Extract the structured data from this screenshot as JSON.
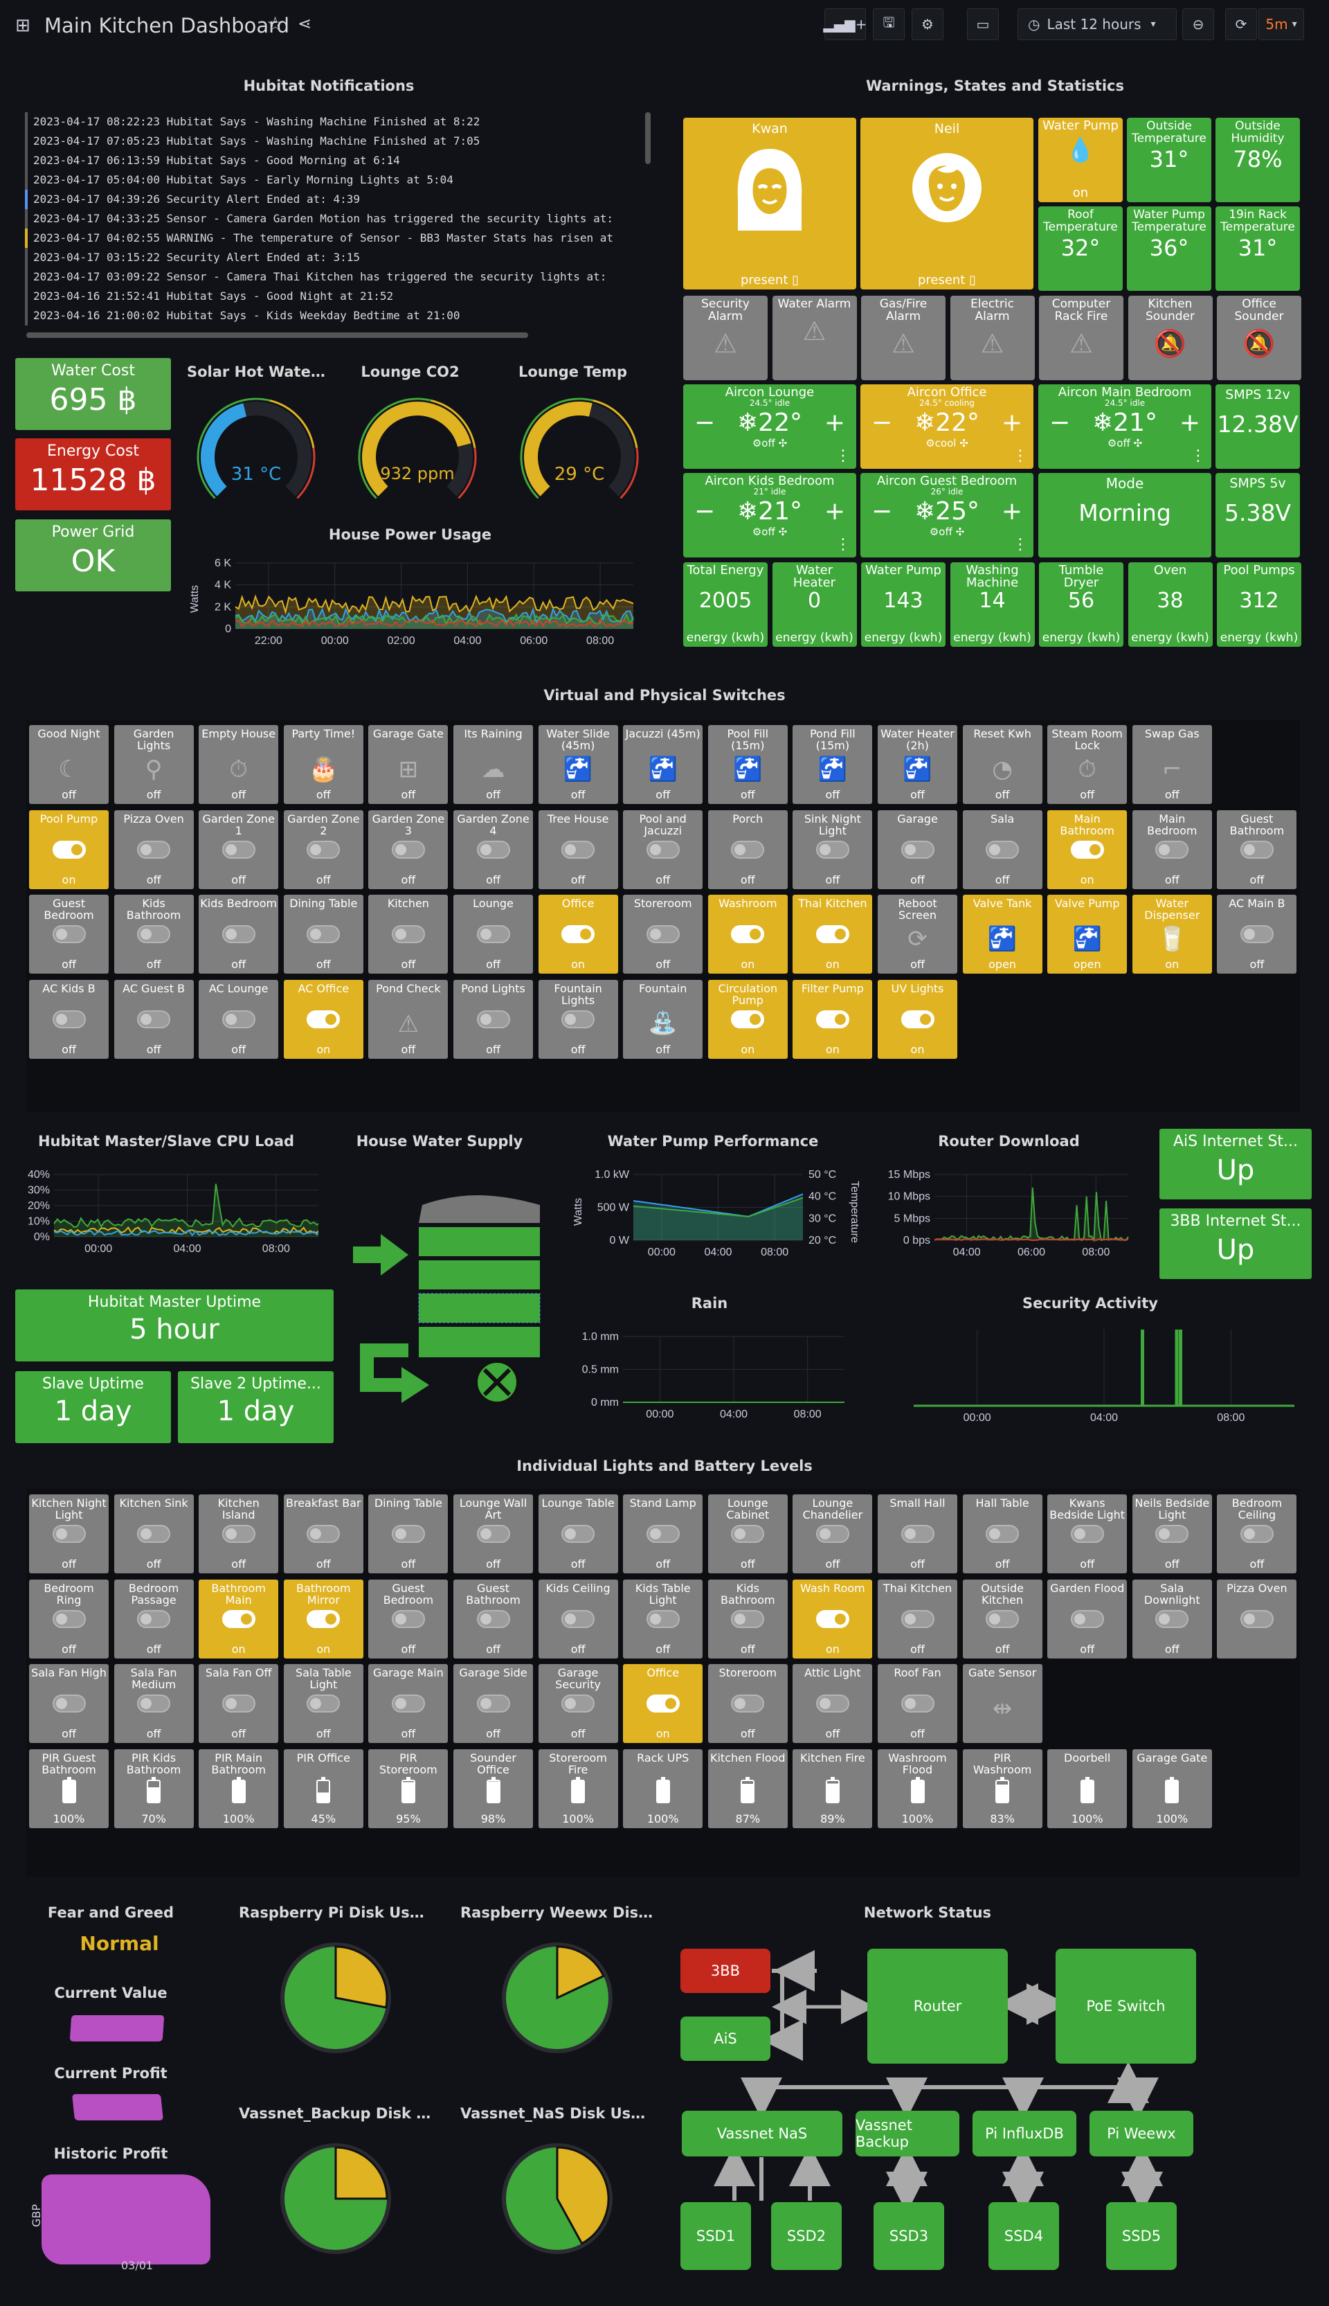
{
  "header": {
    "title": "Main Kitchen Dashboard",
    "time_range": "Last 12 hours",
    "refresh": "5m"
  },
  "notifications": {
    "title": "Hubitat Notifications",
    "lines": [
      "2023-04-17 08:22:23 Hubitat Says - Washing Machine Finished at 8:22",
      "2023-04-17 07:05:23 Hubitat Says - Washing Machine Finished at 7:05",
      "2023-04-17 06:13:59 Hubitat Says - Good Morning at 6:14",
      "2023-04-17 05:04:00 Hubitat Says - Early Morning Lights at 5:04",
      "2023-04-17 04:39:26 Security Alert Ended at: 4:39",
      "2023-04-17 04:33:25 Sensor - Camera Garden Motion has triggered the security lights at:",
      "2023-04-17 04:02:55 WARNING - The temperature of Sensor - BB3 Master Stats has risen at",
      "2023-04-17 03:15:22 Security Alert Ended at: 3:15",
      "2023-04-17 03:09:22 Sensor - Camera Thai Kitchen has triggered the security lights at:",
      "2023-04-16 21:52:41 Hubitat Says - Good Night at 21:52",
      "2023-04-16 21:00:02 Hubitat Says - Kids Weekday Bedtime at 21:00"
    ]
  },
  "costs": {
    "water_title": "Water Cost",
    "water_value": "695 ฿",
    "energy_title": "Energy Cost",
    "energy_value": "11528 ฿",
    "grid_title": "Power Grid",
    "grid_value": "OK"
  },
  "gauges": {
    "solar_title": "Solar Hot Wate...",
    "solar_value": "31 °C",
    "solar_fraction": 0.45,
    "co2_title": "Lounge CO2",
    "co2_value": "932 ppm",
    "co2_fraction": 0.78,
    "temp_title": "Lounge Temp",
    "temp_value": "29 °C",
    "temp_fraction": 0.55
  },
  "power": {
    "title": "House Power Usage",
    "ylabel": "Watts",
    "yticks": [
      "6 K",
      "4 K",
      "2 K",
      "0"
    ],
    "xticks": [
      "22:00",
      "00:00",
      "02:00",
      "04:00",
      "06:00",
      "08:00"
    ]
  },
  "warnings": {
    "title": "Warnings, States and Statistics",
    "kwan": {
      "name": "Kwan",
      "state": "present"
    },
    "neil": {
      "name": "Neil",
      "state": "present"
    },
    "tiles": [
      {
        "label": "Water Pump",
        "value": "on"
      },
      {
        "label": "Outside Temperature",
        "value": "31°"
      },
      {
        "label": "Outside Humidity",
        "value": "78%"
      },
      {
        "label": "Roof Temperature",
        "value": "32°"
      },
      {
        "label": "Water Pump Temperature",
        "value": "36°"
      },
      {
        "label": "19in Rack Temperature",
        "value": "31°"
      }
    ],
    "alarms": [
      "Security Alarm",
      "Water Alarm",
      "Gas/Fire Alarm",
      "Electric Alarm",
      "Computer Rack Fire",
      "Kitchen Sounder",
      "Office Sounder"
    ],
    "aircons": [
      {
        "name": "Aircon Lounge",
        "sub": "24.5° idle",
        "temp": "22°",
        "mode": "off"
      },
      {
        "name": "Aircon Office",
        "sub": "24.5° cooling",
        "temp": "22°",
        "mode": "cool"
      },
      {
        "name": "Aircon Main Bedroom",
        "sub": "24.5° idle",
        "temp": "21°",
        "mode": "off"
      },
      {
        "name": "Aircon Kids Bedroom",
        "sub": "21° idle",
        "temp": "21°",
        "mode": "off"
      },
      {
        "name": "Aircon Guest Bedroom",
        "sub": "26° idle",
        "temp": "25°",
        "mode": "off"
      }
    ],
    "smps12": {
      "label": "SMPS 12v",
      "value": "12.38V"
    },
    "smps5": {
      "label": "SMPS 5v",
      "value": "5.38V"
    },
    "mode": {
      "label": "Mode",
      "value": "Morning"
    },
    "energy": [
      {
        "label": "Total Energy",
        "value": "2005",
        "unit": "energy (kwh)"
      },
      {
        "label": "Water Heater",
        "value": "0",
        "unit": "energy (kwh)"
      },
      {
        "label": "Water Pump",
        "value": "143",
        "unit": "energy (kwh)"
      },
      {
        "label": "Washing Machine",
        "value": "14",
        "unit": "energy (kwh)"
      },
      {
        "label": "Tumble Dryer",
        "value": "56",
        "unit": "energy (kwh)"
      },
      {
        "label": "Oven",
        "value": "38",
        "unit": "energy (kwh)"
      },
      {
        "label": "Pool Pumps",
        "value": "312",
        "unit": "energy (kwh)"
      }
    ]
  },
  "switches": {
    "title": "Virtual and Physical Switches",
    "rows": [
      [
        {
          "label": "Good Night",
          "state": "off",
          "icon": "moon"
        },
        {
          "label": "Garden Lights",
          "state": "off",
          "icon": "lamp"
        },
        {
          "label": "Empty House",
          "state": "off",
          "icon": "timer"
        },
        {
          "label": "Party Time!",
          "state": "off",
          "icon": "cake"
        },
        {
          "label": "Garage Gate",
          "state": "off",
          "icon": "gate"
        },
        {
          "label": "Its Raining",
          "state": "off",
          "icon": "cloud"
        },
        {
          "label": "Water Slide (45m)",
          "state": "off",
          "icon": "tap"
        },
        {
          "label": "Jacuzzi (45m)",
          "state": "off",
          "icon": "tap"
        },
        {
          "label": "Pool Fill (15m)",
          "state": "off",
          "icon": "tap"
        },
        {
          "label": "Pond Fill (15m)",
          "state": "off",
          "icon": "tap"
        },
        {
          "label": "Water Heater (2h)",
          "state": "off",
          "icon": "tap"
        },
        {
          "label": "Reset Kwh",
          "state": "off",
          "icon": "gauge"
        },
        {
          "label": "Steam Room Lock",
          "state": "off",
          "icon": "timer"
        },
        {
          "label": "Swap Gas",
          "state": "off",
          "icon": "pipe"
        }
      ],
      [
        {
          "label": "Pool Pump",
          "state": "on",
          "icon": "toggle"
        },
        {
          "label": "Pizza Oven",
          "state": "off",
          "icon": "toggle"
        },
        {
          "label": "Garden Zone 1",
          "state": "off",
          "icon": "toggle"
        },
        {
          "label": "Garden Zone 2",
          "state": "off",
          "icon": "toggle"
        },
        {
          "label": "Garden Zone 3",
          "state": "off",
          "icon": "toggle"
        },
        {
          "label": "Garden Zone 4",
          "state": "off",
          "icon": "toggle"
        },
        {
          "label": "Tree House",
          "state": "off",
          "icon": "toggle"
        },
        {
          "label": "Pool and Jacuzzi",
          "state": "off",
          "icon": "toggle"
        },
        {
          "label": "Porch",
          "state": "off",
          "icon": "toggle"
        },
        {
          "label": "Sink Night Light",
          "state": "off",
          "icon": "toggle"
        },
        {
          "label": "Garage",
          "state": "off",
          "icon": "toggle"
        },
        {
          "label": "Sala",
          "state": "off",
          "icon": "toggle"
        },
        {
          "label": "Main Bathroom",
          "state": "on",
          "icon": "toggle"
        },
        {
          "label": "Main Bedroom",
          "state": "off",
          "icon": "toggle"
        },
        {
          "label": "Guest Bathroom",
          "state": "off",
          "icon": "toggle"
        }
      ],
      [
        {
          "label": "Guest Bedroom",
          "state": "off",
          "icon": "toggle"
        },
        {
          "label": "Kids Bathroom",
          "state": "off",
          "icon": "toggle"
        },
        {
          "label": "Kids Bedroom",
          "state": "off",
          "icon": "toggle"
        },
        {
          "label": "Dining Table",
          "state": "off",
          "icon": "toggle"
        },
        {
          "label": "Kitchen",
          "state": "off",
          "icon": "toggle"
        },
        {
          "label": "Lounge",
          "state": "off",
          "icon": "toggle"
        },
        {
          "label": "Office",
          "state": "on",
          "icon": "toggle"
        },
        {
          "label": "Storeroom",
          "state": "off",
          "icon": "toggle"
        },
        {
          "label": "Washroom",
          "state": "on",
          "icon": "toggle"
        },
        {
          "label": "Thai Kitchen",
          "state": "on",
          "icon": "toggle"
        },
        {
          "label": "Reboot Screen",
          "state": "off",
          "icon": "reboot"
        },
        {
          "label": "Valve Tank",
          "state": "open",
          "icon": "tap"
        },
        {
          "label": "Valve Pump",
          "state": "open",
          "icon": "tap"
        },
        {
          "label": "Water Dispenser",
          "state": "on",
          "icon": "cup"
        },
        {
          "label": "AC Main B",
          "state": "off",
          "icon": "toggle"
        }
      ],
      [
        {
          "label": "AC Kids B",
          "state": "off",
          "icon": "toggle"
        },
        {
          "label": "AC Guest B",
          "state": "off",
          "icon": "toggle"
        },
        {
          "label": "AC Lounge",
          "state": "off",
          "icon": "toggle"
        },
        {
          "label": "AC Office",
          "state": "on",
          "icon": "toggle"
        },
        {
          "label": "Pond Check",
          "state": "off",
          "icon": "warn"
        },
        {
          "label": "Pond Lights",
          "state": "off",
          "icon": "toggle"
        },
        {
          "label": "Fountain Lights",
          "state": "off",
          "icon": "toggle"
        },
        {
          "label": "Fountain",
          "state": "off",
          "icon": "fountain"
        },
        {
          "label": "Circulation Pump",
          "state": "on",
          "icon": "toggle"
        },
        {
          "label": "Filter Pump",
          "state": "on",
          "icon": "toggle"
        },
        {
          "label": "UV Lights",
          "state": "on",
          "icon": "toggle"
        }
      ]
    ]
  },
  "cpu": {
    "title": "Hubitat Master/Slave CPU Load",
    "yticks": [
      "40%",
      "30%",
      "20%",
      "10%",
      "0%"
    ],
    "xticks": [
      "00:00",
      "04:00",
      "08:00"
    ]
  },
  "water_supply": {
    "title": "House Water Supply"
  },
  "pump": {
    "title": "Water Pump Performance",
    "ylabel": "Watts",
    "y2label": "Temperature",
    "yticks": [
      "1.0 kW",
      "500 W",
      "0 W"
    ],
    "y2ticks": [
      "50 °C",
      "40 °C",
      "30 °C",
      "20 °C"
    ],
    "xticks": [
      "00:00",
      "04:00",
      "08:00"
    ]
  },
  "router": {
    "title": "Router Download",
    "yticks": [
      "15 Mbps",
      "10 Mbps",
      "5 Mbps",
      "0 bps"
    ],
    "xticks": [
      "04:00",
      "06:00",
      "08:00"
    ]
  },
  "internet": {
    "ais_title": "AiS Internet St...",
    "ais_value": "Up",
    "bb3_title": "3BB Internet St...",
    "bb3_value": "Up"
  },
  "uptime": {
    "master_title": "Hubitat Master Uptime",
    "master_value": "5 hour",
    "slave_title": "Slave Uptime",
    "slave_value": "1 day",
    "slave2_title": "Slave 2 Uptime...",
    "slave2_value": "1 day"
  },
  "rain": {
    "title": "Rain",
    "yticks": [
      "1.0 mm",
      "0.5 mm",
      "0 mm"
    ],
    "xticks": [
      "00:00",
      "04:00",
      "08:00"
    ]
  },
  "security": {
    "title": "Security Activity",
    "xticks": [
      "00:00",
      "04:00",
      "08:00"
    ]
  },
  "lights": {
    "title": "Individual Lights and Battery Levels",
    "rows": [
      [
        {
          "label": "Kitchen Night Light",
          "state": "off"
        },
        {
          "label": "Kitchen Sink",
          "state": "off"
        },
        {
          "label": "Kitchen Island",
          "state": "off"
        },
        {
          "label": "Breakfast Bar",
          "state": "off"
        },
        {
          "label": "Dining Table",
          "state": "off"
        },
        {
          "label": "Lounge Wall Art",
          "state": "off"
        },
        {
          "label": "Lounge Table",
          "state": "off"
        },
        {
          "label": "Stand Lamp",
          "state": "off"
        },
        {
          "label": "Lounge Cabinet",
          "state": "off"
        },
        {
          "label": "Lounge Chandelier",
          "state": "off"
        },
        {
          "label": "Small Hall",
          "state": "off"
        },
        {
          "label": "Hall Table",
          "state": "off"
        },
        {
          "label": "Kwans Bedside Light",
          "state": "off"
        },
        {
          "label": "Neils Bedside Light",
          "state": "off"
        },
        {
          "label": "Bedroom Ceiling",
          "state": "off"
        }
      ],
      [
        {
          "label": "Bedroom Ring",
          "state": "off"
        },
        {
          "label": "Bedroom Passage",
          "state": "off"
        },
        {
          "label": "Bathroom Main",
          "state": "on"
        },
        {
          "label": "Bathroom Mirror",
          "state": "on"
        },
        {
          "label": "Guest Bedroom",
          "state": "off"
        },
        {
          "label": "Guest Bathroom",
          "state": "off"
        },
        {
          "label": "Kids Ceiling",
          "state": "off"
        },
        {
          "label": "Kids Table Light",
          "state": "off"
        },
        {
          "label": "Kids Bathroom",
          "state": "off"
        },
        {
          "label": "Wash Room",
          "state": "on"
        },
        {
          "label": "Thai Kitchen",
          "state": "off"
        },
        {
          "label": "Outside Kitchen",
          "state": "off"
        },
        {
          "label": "Garden Flood",
          "state": "off"
        },
        {
          "label": "Sala Downlight",
          "state": "off"
        },
        {
          "label": "Pizza Oven",
          "state": ""
        }
      ],
      [
        {
          "label": "Sala Fan High",
          "state": "off"
        },
        {
          "label": "Sala Fan Medium",
          "state": "off"
        },
        {
          "label": "Sala Fan Off",
          "state": "off"
        },
        {
          "label": "Sala Table Light",
          "state": "off"
        },
        {
          "label": "Garage Main",
          "state": "off"
        },
        {
          "label": "Garage Side",
          "state": "off"
        },
        {
          "label": "Garage Security",
          "state": "off"
        },
        {
          "label": "Office",
          "state": "on"
        },
        {
          "label": "Storeroom",
          "state": "off"
        },
        {
          "label": "Attic Light",
          "state": "off"
        },
        {
          "label": "Roof Fan",
          "state": "off"
        },
        {
          "label": "Gate Sensor",
          "state": ""
        }
      ]
    ],
    "batteries": [
      {
        "label": "PIR Guest Bathroom",
        "value": "100%",
        "level": 1.0
      },
      {
        "label": "PIR Kids Bathroom",
        "value": "70%",
        "level": 0.7
      },
      {
        "label": "PIR Main Bathroom",
        "value": "100%",
        "level": 1.0
      },
      {
        "label": "PIR Office",
        "value": "45%",
        "level": 0.45
      },
      {
        "label": "PIR Storeroom",
        "value": "95%",
        "level": 0.95
      },
      {
        "label": "Sounder Office",
        "value": "98%",
        "level": 0.98
      },
      {
        "label": "Storeroom Fire",
        "value": "100%",
        "level": 1.0
      },
      {
        "label": "Rack UPS",
        "value": "100%",
        "level": 1.0
      },
      {
        "label": "Kitchen Flood",
        "value": "87%",
        "level": 0.87
      },
      {
        "label": "Kitchen Fire",
        "value": "89%",
        "level": 0.89
      },
      {
        "label": "Washroom Flood",
        "value": "100%",
        "level": 1.0
      },
      {
        "label": "PIR Washroom",
        "value": "83%",
        "level": 0.83
      },
      {
        "label": "Doorbell",
        "value": "100%",
        "level": 1.0
      },
      {
        "label": "Garage Gate",
        "value": "100%",
        "level": 1.0
      }
    ]
  },
  "finance": {
    "fear_title": "Fear and Greed",
    "fear_value": "Normal",
    "current_value_title": "Current Value",
    "current_profit_title": "Current Profit",
    "historic_title": "Historic Profit",
    "historic_ylabel": "GBP",
    "historic_xtick": "03/01"
  },
  "disks": [
    {
      "title": "Raspberry Pi Disk Usag...",
      "used": 0.28
    },
    {
      "title": "Raspberry Weewx Disk ...",
      "used": 0.18
    },
    {
      "title": "Vassnet_Backup Disk ...",
      "used": 0.25
    },
    {
      "title": "Vassnet_NaS Disk Usa...",
      "used": 0.42
    }
  ],
  "network": {
    "title": "Network Status",
    "nodes": {
      "bb3": "3BB",
      "ais": "AiS",
      "router": "Router",
      "poe": "PoE Switch",
      "nas": "Vassnet NaS",
      "backup": "Vassnet Backup",
      "influx": "Pi InfluxDB",
      "weewx": "Pi Weewx",
      "ssd1": "SSD1",
      "ssd2": "SSD2",
      "ssd3": "SSD3",
      "ssd4": "SSD4",
      "ssd5": "SSD5"
    }
  },
  "colors": {
    "green": "#56a64b",
    "yellow": "#e0b322",
    "red": "#d43c2e",
    "grey": "#7f7f7f",
    "accent": "#ff7a2a"
  }
}
